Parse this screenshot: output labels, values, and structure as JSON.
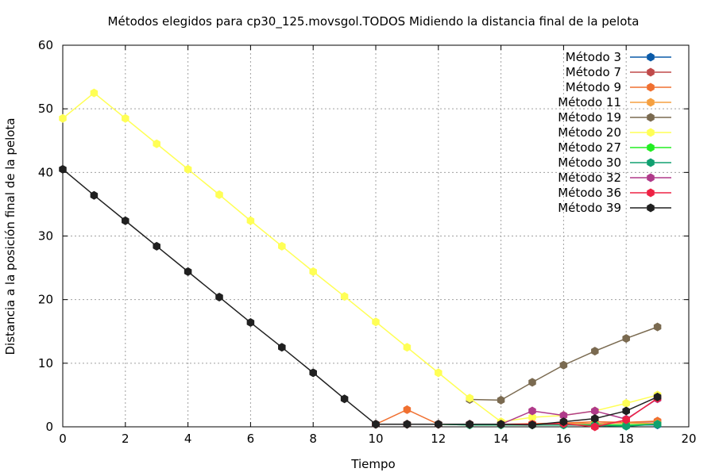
{
  "chart_data": {
    "type": "line",
    "title": "Métodos elegidos para cp30_125.movsgol.TODOS Midiendo la distancia final de la pelota",
    "xlabel": "Tiempo",
    "ylabel": "Distancia a la posición final de la pelota",
    "xlim": [
      0,
      20
    ],
    "ylim": [
      0,
      60
    ],
    "xticks": [
      "0",
      "2",
      "4",
      "6",
      "8",
      "10",
      "12",
      "14",
      "16",
      "18",
      "20"
    ],
    "yticks": [
      "0",
      "10",
      "20",
      "30",
      "40",
      "50",
      "60"
    ],
    "grid": true,
    "legend_position": "top-right",
    "series": [
      {
        "name": "Método 3",
        "color": "#0a5aa8",
        "x": [
          10,
          11,
          12,
          13,
          14,
          15,
          16,
          17,
          18,
          19
        ],
        "y": [
          0.4,
          0.4,
          0.4,
          0.4,
          0.4,
          0.3,
          0.3,
          0.3,
          0.3,
          0.3
        ]
      },
      {
        "name": "Método 7",
        "color": "#c04a4a",
        "x": [
          10,
          11,
          12,
          13,
          14,
          15,
          16,
          17,
          18,
          19
        ],
        "y": [
          0.4,
          0.4,
          0.4,
          0.4,
          0.4,
          0.4,
          0.6,
          0.5,
          0.7,
          0.8
        ]
      },
      {
        "name": "Método 9",
        "color": "#f07030",
        "x": [
          10,
          11,
          12,
          13,
          14,
          15,
          16,
          17,
          18,
          19
        ],
        "y": [
          0.4,
          2.7,
          0.4,
          0.4,
          0.4,
          0.5,
          0.6,
          0.8,
          0.7,
          0.9
        ]
      },
      {
        "name": "Método 11",
        "color": "#f5a040",
        "x": [
          10,
          11,
          12,
          13,
          14,
          15,
          16,
          17,
          18,
          19
        ],
        "y": [
          0.4,
          0.4,
          0.4,
          0.4,
          0.4,
          0.4,
          0.5,
          0.5,
          0.6,
          0.5
        ]
      },
      {
        "name": "Método 19",
        "color": "#7a6a50",
        "x": [
          13,
          14,
          15,
          16,
          17,
          18,
          19
        ],
        "y": [
          4.3,
          4.2,
          7.0,
          9.7,
          11.9,
          13.9,
          15.7
        ]
      },
      {
        "name": "Método 20",
        "color": "#ffff55",
        "x": [
          0,
          1,
          2,
          3,
          4,
          5,
          6,
          7,
          8,
          9,
          10,
          11,
          12,
          13,
          14,
          15,
          16,
          17,
          18,
          19
        ],
        "y": [
          48.5,
          52.5,
          48.5,
          44.5,
          40.5,
          36.5,
          32.4,
          28.4,
          24.4,
          20.5,
          16.5,
          12.5,
          8.5,
          4.5,
          0.8,
          1.5,
          1.8,
          2.5,
          3.7,
          5.0
        ]
      },
      {
        "name": "Método 27",
        "color": "#22ee22",
        "x": [
          10,
          11,
          12,
          13,
          14,
          15,
          16,
          17,
          18,
          19
        ],
        "y": [
          0.4,
          0.4,
          0.4,
          0.3,
          0.3,
          0.3,
          0.3,
          0.3,
          0.3,
          0.4
        ]
      },
      {
        "name": "Método 30",
        "color": "#10a070",
        "x": [
          10,
          11,
          12,
          13,
          14,
          15,
          16,
          17,
          18,
          19
        ],
        "y": [
          0.4,
          0.4,
          0.4,
          0.3,
          0.3,
          0.3,
          0.3,
          0.2,
          0.1,
          0.4
        ]
      },
      {
        "name": "Método 32",
        "color": "#b03a8a",
        "x": [
          10,
          11,
          12,
          13,
          14,
          15,
          16,
          17,
          18,
          19
        ],
        "y": [
          0.4,
          0.4,
          0.4,
          0.4,
          0.4,
          2.5,
          1.8,
          2.5,
          1.2,
          4.4
        ]
      },
      {
        "name": "Método 36",
        "color": "#ee2244",
        "x": [
          10,
          11,
          12,
          13,
          14,
          15,
          16,
          17,
          18,
          19
        ],
        "y": [
          0.4,
          0.4,
          0.4,
          0.4,
          0.4,
          0.4,
          0.5,
          0.0,
          1.1,
          4.5
        ]
      },
      {
        "name": "Método 39",
        "color": "#202020",
        "x": [
          0,
          1,
          2,
          3,
          4,
          5,
          6,
          7,
          8,
          9,
          10,
          11,
          12,
          13,
          14,
          15,
          16,
          17,
          18,
          19
        ],
        "y": [
          40.5,
          36.4,
          32.4,
          28.4,
          24.4,
          20.4,
          16.4,
          12.5,
          8.5,
          4.4,
          0.4,
          0.4,
          0.4,
          0.4,
          0.4,
          0.3,
          0.8,
          1.3,
          2.5,
          4.7
        ]
      }
    ]
  }
}
